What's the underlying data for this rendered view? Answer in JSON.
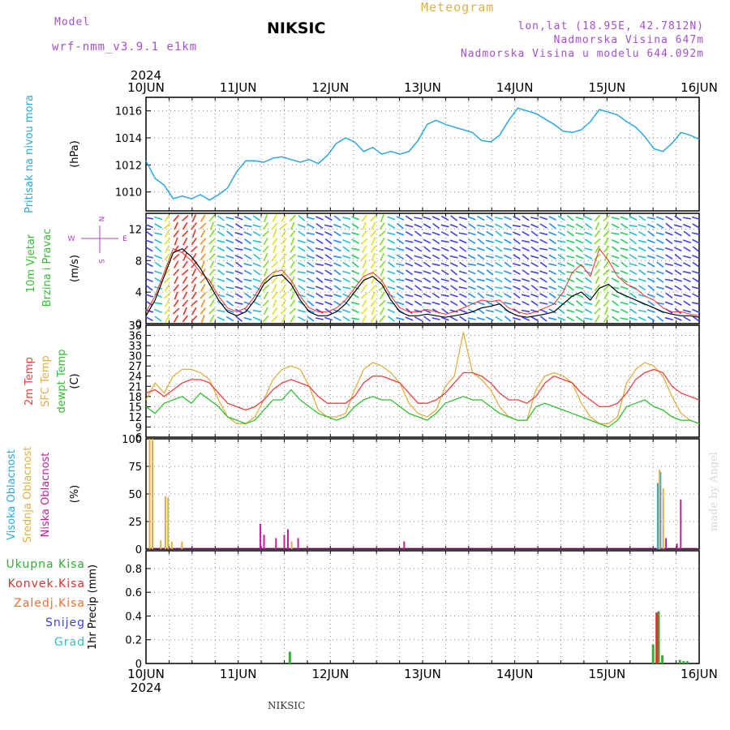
{
  "header": {
    "model_label": "Model",
    "model_name": "wrf-nmm_v3.9.1 e1km",
    "station": "NIKSIC",
    "product": "Meteogram",
    "lonlat": "lon,lat (18.95E, 42.7812N)",
    "elevation": "Nadmorska Visina 647m",
    "model_elevation": "Nadmorska Visina u modelu 644.092m"
  },
  "footer": {
    "station": "NIKSIC",
    "credit": "made by Angel"
  },
  "colors": {
    "pressure": "#2aa8e0",
    "temp": "#f04040",
    "sfc_temp": "#e0b040",
    "dewpt": "#30c030",
    "cloud_high": "#2aa8e0",
    "cloud_mid": "#e0b040",
    "cloud_low": "#c020a0",
    "total_precip": "#30b030",
    "conv_precip": "#e03030",
    "frozen_precip": "#f07030",
    "snow": "#4040e0",
    "hail": "#30c0c0",
    "grid": "#888888"
  },
  "chart_data": [
    {
      "type": "line",
      "x_labels": [
        "10JUN",
        "11JUN",
        "12JUN",
        "13JUN",
        "14JUN",
        "15JUN",
        "16JUN"
      ],
      "x_year": "2024",
      "ylabel": "(hPa)",
      "panel_label": [
        "Pritisak na nivou mora"
      ],
      "ylim": [
        1008.6,
        1017
      ],
      "yticks": [
        1010,
        1012,
        1014,
        1016
      ],
      "grid": true,
      "series": [
        {
          "name": "Pritisak na nivou mora",
          "values": [
            1012.3,
            1011.0,
            1010.5,
            1009.5,
            1009.7,
            1009.5,
            1009.8,
            1009.4,
            1009.8,
            1010.3,
            1011.5,
            1012.3,
            1012.3,
            1012.2,
            1012.5,
            1012.6,
            1012.4,
            1012.2,
            1012.4,
            1012.1,
            1012.7,
            1013.6,
            1014.0,
            1013.7,
            1013.0,
            1013.3,
            1012.8,
            1013.0,
            1012.8,
            1013.0,
            1013.8,
            1015.0,
            1015.3,
            1015.0,
            1014.8,
            1014.6,
            1014.4,
            1013.8,
            1013.7,
            1014.2,
            1015.3,
            1016.2,
            1016.0,
            1015.8,
            1015.4,
            1015.0,
            1014.5,
            1014.4,
            1014.6,
            1015.2,
            1016.1,
            1015.9,
            1015.7,
            1015.2,
            1014.8,
            1014.1,
            1013.2,
            1013.0,
            1013.6,
            1014.4,
            1014.2,
            1013.9
          ]
        }
      ]
    },
    {
      "type": "line",
      "x_labels": [
        "10JUN",
        "11JUN",
        "12JUN",
        "13JUN",
        "14JUN",
        "15JUN",
        "16JUN"
      ],
      "ylabel": "(m/s)",
      "panel_label": [
        "10m Vjetar",
        "Brzina i Pravac"
      ],
      "compass": [
        "N",
        "E",
        "S",
        "W"
      ],
      "ylim": [
        0,
        14
      ],
      "yticks": [
        0,
        4,
        8,
        12
      ],
      "grid": true,
      "series": [
        {
          "name": "10m Vjetar",
          "values": [
            1.0,
            3.0,
            6.0,
            9.0,
            9.5,
            8.5,
            7.0,
            5.0,
            3.0,
            1.5,
            1.0,
            1.5,
            3.0,
            5.0,
            6.0,
            6.2,
            5.0,
            3.0,
            1.5,
            1.0,
            1.0,
            1.5,
            2.5,
            4.0,
            5.5,
            6.0,
            5.0,
            3.0,
            1.5,
            1.0,
            1.0,
            1.2,
            1.0,
            0.8,
            1.0,
            1.2,
            1.5,
            2.0,
            2.2,
            2.5,
            1.5,
            1.0,
            0.8,
            1.0,
            1.2,
            1.5,
            2.5,
            3.5,
            4.0,
            3.0,
            4.5,
            5.0,
            4.0,
            3.5,
            3.0,
            2.5,
            2.0,
            1.5,
            1.2,
            1.0,
            1.0,
            0.8
          ]
        },
        {
          "name": "gust",
          "values": [
            1.5,
            3.5,
            6.5,
            9.5,
            9.0,
            8.0,
            6.5,
            5.5,
            3.5,
            2.0,
            1.5,
            2.0,
            3.5,
            5.5,
            6.5,
            6.8,
            5.5,
            3.5,
            2.0,
            1.5,
            1.5,
            2.0,
            3.0,
            4.5,
            6.0,
            6.5,
            5.5,
            3.5,
            2.0,
            1.5,
            1.5,
            1.8,
            1.5,
            1.2,
            1.5,
            2.0,
            2.5,
            3.0,
            2.8,
            3.0,
            2.0,
            1.5,
            1.2,
            1.5,
            2.0,
            2.5,
            4.0,
            6.5,
            7.5,
            6.0,
            9.5,
            8.0,
            6.0,
            5.0,
            4.5,
            3.5,
            3.0,
            2.0,
            1.5,
            1.5,
            1.2,
            1.0
          ]
        }
      ]
    },
    {
      "type": "line",
      "x_labels": [
        "10JUN",
        "11JUN",
        "12JUN",
        "13JUN",
        "14JUN",
        "15JUN",
        "16JUN"
      ],
      "ylabel": "(C)",
      "panel_label": [
        "2m Temp",
        "SFC Temp",
        "dewpt Temp"
      ],
      "ylim": [
        6,
        39
      ],
      "yticks": [
        6,
        9,
        12,
        15,
        18,
        21,
        24,
        27,
        30,
        33,
        36,
        39
      ],
      "grid": true,
      "series": [
        {
          "name": "2m Temp",
          "values": [
            19,
            20,
            18,
            20,
            22,
            23,
            23,
            22,
            19,
            16,
            15,
            14,
            15,
            17,
            20,
            22,
            23,
            22,
            21,
            18,
            16,
            16,
            16,
            18,
            22,
            24,
            24,
            23,
            22,
            19,
            16,
            16,
            17,
            19,
            22,
            25,
            25,
            24,
            22,
            19,
            17,
            17,
            16,
            18,
            22,
            24,
            23,
            22,
            19,
            17,
            15,
            15,
            16,
            19,
            23,
            25,
            26,
            25,
            21,
            19,
            18,
            17
          ]
        },
        {
          "name": "SFC Temp",
          "values": [
            17,
            22,
            19,
            24,
            26,
            26,
            25,
            23,
            17,
            12,
            10,
            10,
            12,
            17,
            23,
            26,
            27,
            26,
            21,
            14,
            12,
            12,
            13,
            20,
            26,
            28,
            27,
            25,
            22,
            16,
            13,
            12,
            14,
            21,
            24,
            37,
            25,
            23,
            20,
            15,
            12,
            11,
            11,
            20,
            24,
            25,
            24,
            22,
            16,
            12,
            10,
            10,
            12,
            22,
            26,
            28,
            27,
            24,
            18,
            13,
            11,
            10
          ]
        },
        {
          "name": "dewpt Temp",
          "values": [
            15,
            13,
            16,
            17,
            18,
            16,
            19,
            17,
            15,
            12,
            11,
            10,
            11,
            14,
            17,
            17,
            20,
            17,
            15,
            13,
            12,
            11,
            12,
            15,
            17,
            18,
            17,
            17,
            15,
            13,
            12,
            11,
            13,
            16,
            17,
            18,
            17,
            17,
            15,
            13,
            12,
            11,
            11,
            15,
            16,
            15,
            14,
            13,
            12,
            11,
            10,
            9,
            11,
            15,
            16,
            17,
            15,
            14,
            12,
            11,
            11,
            10
          ]
        }
      ]
    },
    {
      "type": "bar",
      "x_labels": [
        "10JUN",
        "11JUN",
        "12JUN",
        "13JUN",
        "14JUN",
        "15JUN",
        "16JUN"
      ],
      "ylabel": "(%)",
      "panel_label": [
        "Visoka Oblacnost",
        "Srednja Oblacnost",
        "Niska Oblacnost"
      ],
      "ylim": [
        0,
        100
      ],
      "yticks": [
        0,
        25,
        50,
        75,
        100
      ],
      "grid": true,
      "series": [
        {
          "name": "Visoka Oblacnost",
          "points": [
            [
              5.55,
              60
            ],
            [
              5.58,
              70
            ],
            [
              6.45,
              37
            ],
            [
              6.53,
              62
            ],
            [
              6.66,
              20
            ]
          ]
        },
        {
          "name": "Srednja Oblacnost",
          "points": [
            [
              0.04,
              100
            ],
            [
              0.07,
              100
            ],
            [
              0.16,
              8
            ],
            [
              0.21,
              48
            ],
            [
              0.24,
              47
            ],
            [
              0.28,
              7
            ],
            [
              0.39,
              7
            ],
            [
              1.58,
              7
            ],
            [
              5.57,
              72
            ],
            [
              5.61,
              55
            ],
            [
              6.48,
              70
            ],
            [
              6.54,
              65
            ],
            [
              6.61,
              50
            ],
            [
              6.65,
              25
            ]
          ]
        },
        {
          "name": "Niska Oblacnost",
          "points": [
            [
              1.24,
              23
            ],
            [
              1.28,
              13
            ],
            [
              1.41,
              10
            ],
            [
              1.5,
              13
            ],
            [
              1.54,
              18
            ],
            [
              1.65,
              10
            ],
            [
              2.8,
              7
            ],
            [
              5.64,
              10
            ],
            [
              5.76,
              5
            ],
            [
              5.8,
              45
            ],
            [
              6.51,
              70
            ],
            [
              6.57,
              63
            ],
            [
              6.63,
              52
            ],
            [
              6.69,
              17
            ],
            [
              7.63,
              43
            ]
          ]
        }
      ]
    },
    {
      "type": "bar",
      "x_labels": [
        "10JUN",
        "11JUN",
        "12JUN",
        "13JUN",
        "14JUN",
        "15JUN",
        "16JUN"
      ],
      "x_year": "2024",
      "ylabel": "1hr Precip (mm)",
      "panel_label": [
        "Ukupna Kisa",
        "Konvek.Kisa",
        "Zaledj.Kisa",
        "Snijeg",
        "Grad"
      ],
      "ylim": [
        0,
        0.95
      ],
      "yticks": [
        0,
        0.2,
        0.4,
        0.6,
        0.8
      ],
      "grid": true,
      "series": [
        {
          "name": "Ukupna Kisa",
          "points": [
            [
              1.56,
              0.1
            ],
            [
              5.5,
              0.16
            ],
            [
              5.56,
              0.44
            ],
            [
              5.6,
              0.07
            ],
            [
              5.79,
              0.03
            ],
            [
              5.83,
              0.02
            ],
            [
              5.87,
              0.02
            ],
            [
              6.42,
              0.07
            ],
            [
              6.46,
              0.27
            ],
            [
              6.51,
              0.22
            ],
            [
              6.55,
              0.28
            ],
            [
              6.6,
              0.27
            ],
            [
              6.64,
              0.21
            ],
            [
              6.69,
              0.09
            ]
          ]
        },
        {
          "name": "Konvek.Kisa",
          "points": [
            [
              5.54,
              0.43
            ],
            [
              6.5,
              0.25
            ],
            [
              6.59,
              0.28
            ],
            [
              6.63,
              0.2
            ]
          ]
        }
      ]
    }
  ]
}
